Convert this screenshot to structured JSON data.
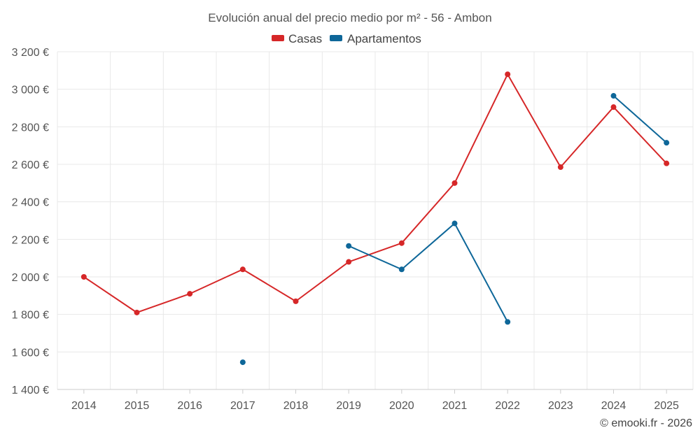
{
  "chart_data": {
    "type": "line",
    "title": "Evolución anual del precio medio por m² - 56 - Ambon",
    "categories": [
      "2014",
      "2015",
      "2016",
      "2017",
      "2018",
      "2019",
      "2020",
      "2021",
      "2022",
      "2023",
      "2024",
      "2025"
    ],
    "series": [
      {
        "name": "Casas",
        "color": "#d62728",
        "values": [
          2000,
          1810,
          1910,
          2040,
          1870,
          2080,
          2180,
          2500,
          3080,
          2585,
          2905,
          2605
        ]
      },
      {
        "name": "Apartamentos",
        "color": "#0e6799",
        "values": [
          null,
          null,
          null,
          1545,
          null,
          2165,
          2040,
          2285,
          1760,
          null,
          2965,
          2715
        ]
      }
    ],
    "ylim": [
      1400,
      3200
    ],
    "yticks": [
      1400,
      1600,
      1800,
      2000,
      2200,
      2400,
      2600,
      2800,
      3000,
      3200
    ],
    "ytick_labels": [
      "1 400 €",
      "1 600 €",
      "1 800 €",
      "2 000 €",
      "2 200 €",
      "2 400 €",
      "2 600 €",
      "2 800 €",
      "3 000 €",
      "3 200 €"
    ],
    "xlabel": "",
    "ylabel": "",
    "grid": true,
    "legend_position": "top-center"
  },
  "credit": "© emooki.fr - 2026"
}
